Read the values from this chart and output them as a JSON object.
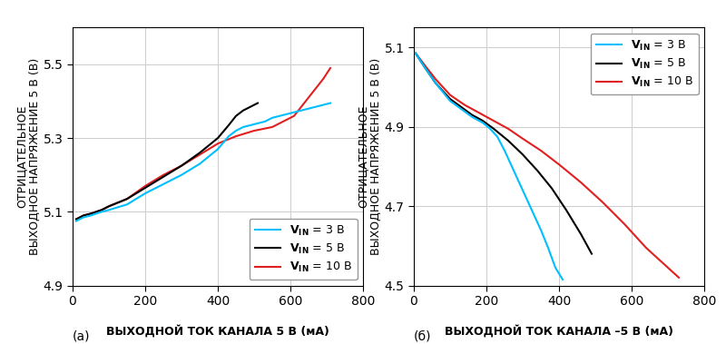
{
  "fig_width": 8.0,
  "fig_height": 3.79,
  "dpi": 100,
  "background_color": "#ffffff",
  "plot_a": {
    "title": "(а)",
    "xlabel_bold": "ВЫХОДНОЙ ТОК КАНАЛА 5 В",
    "xlabel_units": " (мА)",
    "ylabel_line1": "ОТРИЦАТЕЛЬНОЕ",
    "ylabel_line2": "ВЫХОДНОЕ НАПРЯЖЕНИЕ 5 В (В)",
    "xlim": [
      0,
      800
    ],
    "ylim": [
      4.9,
      5.6
    ],
    "xticks": [
      0,
      200,
      400,
      600,
      800
    ],
    "yticks": [
      4.9,
      5.1,
      5.3,
      5.5
    ],
    "legend_loc": "lower right",
    "curves": {
      "cyan": {
        "color": "#00bfff",
        "label": "V_IN = 3 В",
        "x": [
          10,
          30,
          50,
          80,
          100,
          150,
          200,
          250,
          300,
          350,
          400,
          430,
          450,
          470,
          490,
          510,
          530,
          550,
          570,
          590,
          610,
          630,
          650,
          670,
          690,
          710
        ],
        "y": [
          5.075,
          5.085,
          5.09,
          5.1,
          5.105,
          5.12,
          5.15,
          5.175,
          5.2,
          5.23,
          5.27,
          5.305,
          5.32,
          5.33,
          5.335,
          5.34,
          5.345,
          5.355,
          5.36,
          5.365,
          5.37,
          5.375,
          5.38,
          5.385,
          5.39,
          5.395
        ]
      },
      "black": {
        "color": "#000000",
        "label": "V_IN = 5 В",
        "x": [
          10,
          30,
          50,
          80,
          100,
          150,
          200,
          250,
          300,
          350,
          400,
          430,
          450,
          470,
          490,
          510
        ],
        "y": [
          5.08,
          5.09,
          5.095,
          5.105,
          5.115,
          5.135,
          5.165,
          5.195,
          5.225,
          5.26,
          5.3,
          5.335,
          5.36,
          5.375,
          5.385,
          5.395
        ]
      },
      "red": {
        "color": "#e02020",
        "label": "V_IN = 10 В",
        "x": [
          10,
          30,
          50,
          80,
          100,
          150,
          200,
          250,
          300,
          350,
          400,
          450,
          500,
          550,
          580,
          610,
          630,
          650,
          670,
          690,
          710
        ],
        "y": [
          5.08,
          5.09,
          5.095,
          5.105,
          5.115,
          5.135,
          5.17,
          5.2,
          5.225,
          5.255,
          5.285,
          5.305,
          5.32,
          5.33,
          5.345,
          5.36,
          5.385,
          5.41,
          5.435,
          5.46,
          5.49
        ]
      }
    }
  },
  "plot_b": {
    "title": "(б)",
    "xlabel_bold": "ВЫХОДНОЙ ТОК КАНАЛА –5 В",
    "xlabel_units": " (мА)",
    "ylabel_line1": "ОТРИЦАТЕЛЬНОЕ",
    "ylabel_line2": "ВЫХОДНОЕ НАПРЯЖЕНИЕ 5 В (В)",
    "xlim": [
      0,
      800
    ],
    "ylim": [
      4.5,
      5.15
    ],
    "xticks": [
      0,
      200,
      400,
      600,
      800
    ],
    "yticks": [
      4.5,
      4.7,
      4.9,
      5.1
    ],
    "legend_loc": "upper right",
    "curves": {
      "cyan": {
        "color": "#00bfff",
        "label": "V_IN = 3 В",
        "x": [
          5,
          30,
          60,
          100,
          130,
          160,
          190,
          210,
          230,
          250,
          270,
          290,
          310,
          330,
          350,
          370,
          390,
          410
        ],
        "y": [
          5.085,
          5.05,
          5.01,
          4.965,
          4.945,
          4.925,
          4.91,
          4.895,
          4.875,
          4.84,
          4.8,
          4.76,
          4.72,
          4.68,
          4.64,
          4.595,
          4.545,
          4.515
        ]
      },
      "black": {
        "color": "#000000",
        "label": "V_IN = 5 В",
        "x": [
          5,
          30,
          60,
          100,
          130,
          160,
          190,
          220,
          260,
          300,
          340,
          380,
          420,
          460,
          490
        ],
        "y": [
          5.085,
          5.05,
          5.01,
          4.97,
          4.95,
          4.93,
          4.915,
          4.895,
          4.865,
          4.83,
          4.79,
          4.745,
          4.69,
          4.63,
          4.58
        ]
      },
      "red": {
        "color": "#e02020",
        "label": "V_IN = 10 В",
        "x": [
          5,
          30,
          60,
          100,
          140,
          180,
          220,
          260,
          300,
          350,
          400,
          460,
          520,
          580,
          640,
          700,
          730
        ],
        "y": [
          5.085,
          5.055,
          5.02,
          4.98,
          4.955,
          4.935,
          4.915,
          4.895,
          4.87,
          4.84,
          4.805,
          4.76,
          4.71,
          4.655,
          4.595,
          4.545,
          4.52
        ]
      }
    }
  },
  "legend_entries": [
    {
      "label_bold": "V",
      "label_sub": "IN",
      "label_rest": " = 3 В",
      "color": "#00bfff"
    },
    {
      "label_bold": "V",
      "label_sub": "IN",
      "label_rest": " = 5 В",
      "color": "#000000"
    },
    {
      "label_bold": "V",
      "label_sub": "IN",
      "label_rest": " = 10 В",
      "color": "#e02020"
    }
  ],
  "line_width": 1.5,
  "grid_color": "#cccccc",
  "tick_fontsize": 9,
  "label_fontsize": 8,
  "legend_fontsize": 9
}
